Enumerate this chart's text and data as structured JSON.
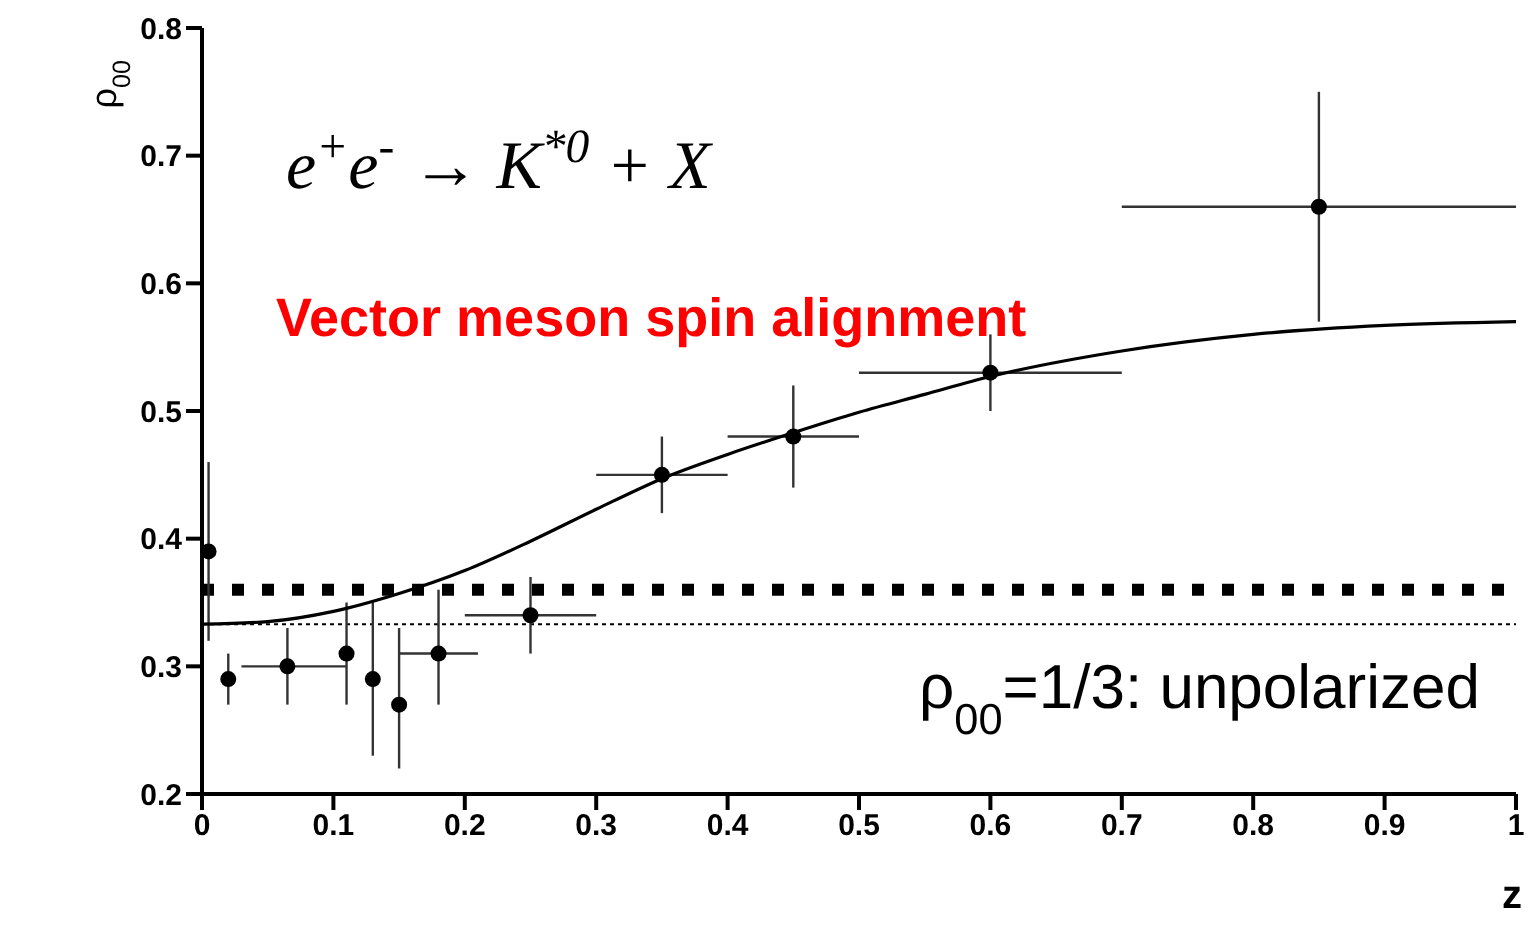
{
  "chart_data": {
    "type": "scatter",
    "title": "Vector meson spin alignment",
    "xlabel": "z",
    "ylabel": "ρ$_{00}$",
    "annotations": [
      "e$^{+}$e$^{-}$ → K$^{*0}$ + X"
    ],
    "xlim": [
      0,
      1
    ],
    "xticks": [
      0,
      0.1,
      0.2,
      0.3,
      0.4,
      0.5,
      0.6,
      0.7,
      0.8,
      0.9,
      1
    ],
    "ylim": [
      0.2,
      0.8
    ],
    "yticks": [
      0.2,
      0.3,
      0.4,
      0.5,
      0.6,
      0.7,
      0.8
    ],
    "grid": false,
    "legend": false,
    "marker": "circle",
    "series": [
      {
        "color": "#000000",
        "x": [
          0.005,
          0.02,
          0.065,
          0.11,
          0.13,
          0.15,
          0.18,
          0.25,
          0.35,
          0.45,
          0.6,
          0.85
        ],
        "values": [
          0.39,
          0.29,
          0.3,
          0.31,
          0.29,
          0.27,
          0.31,
          0.34,
          0.45,
          0.48,
          0.53,
          0.66
        ],
        "errors": [
          [
            0.32,
            0.46
          ],
          [
            0.27,
            0.31
          ],
          [
            0.27,
            0.33
          ],
          [
            0.27,
            0.35
          ],
          [
            0.23,
            0.35
          ],
          [
            0.22,
            0.33
          ],
          [
            0.27,
            0.36
          ],
          [
            0.31,
            0.37
          ],
          [
            0.42,
            0.48
          ],
          [
            0.44,
            0.52
          ],
          [
            0.5,
            0.56
          ],
          [
            0.57,
            0.75
          ]
        ],
        "xerrors": [
          null,
          null,
          [
            0.03,
            0.11
          ],
          null,
          null,
          null,
          [
            0.15,
            0.21
          ],
          [
            0.2,
            0.3
          ],
          [
            0.3,
            0.4
          ],
          [
            0.4,
            0.5
          ],
          [
            0.5,
            0.7
          ],
          [
            0.7,
            1.0
          ]
        ]
      },
      {
        "type": "line",
        "color": "#000000",
        "marker": "none",
        "line_style": "solid",
        "x": [
          0,
          0.05,
          0.1,
          0.15,
          0.2,
          0.25,
          0.3,
          0.35,
          0.4,
          0.45,
          0.5,
          0.55,
          0.6,
          0.7,
          0.8,
          0.9,
          1
        ],
        "values": [
          0.333,
          0.335,
          0.343,
          0.357,
          0.375,
          0.398,
          0.423,
          0.447,
          0.466,
          0.483,
          0.499,
          0.513,
          0.527,
          0.547,
          0.56,
          0.567,
          0.57
        ]
      }
    ],
    "ref_lines": [
      {
        "axis": "y",
        "value": 0.36,
        "line_style": "dotted",
        "color": "#000000"
      },
      {
        "axis": "y",
        "value": 0.333,
        "line_style": "dotted",
        "color": "#000000",
        "label": "ρ$_{00}$=1/3: unpolarized"
      }
    ]
  }
}
